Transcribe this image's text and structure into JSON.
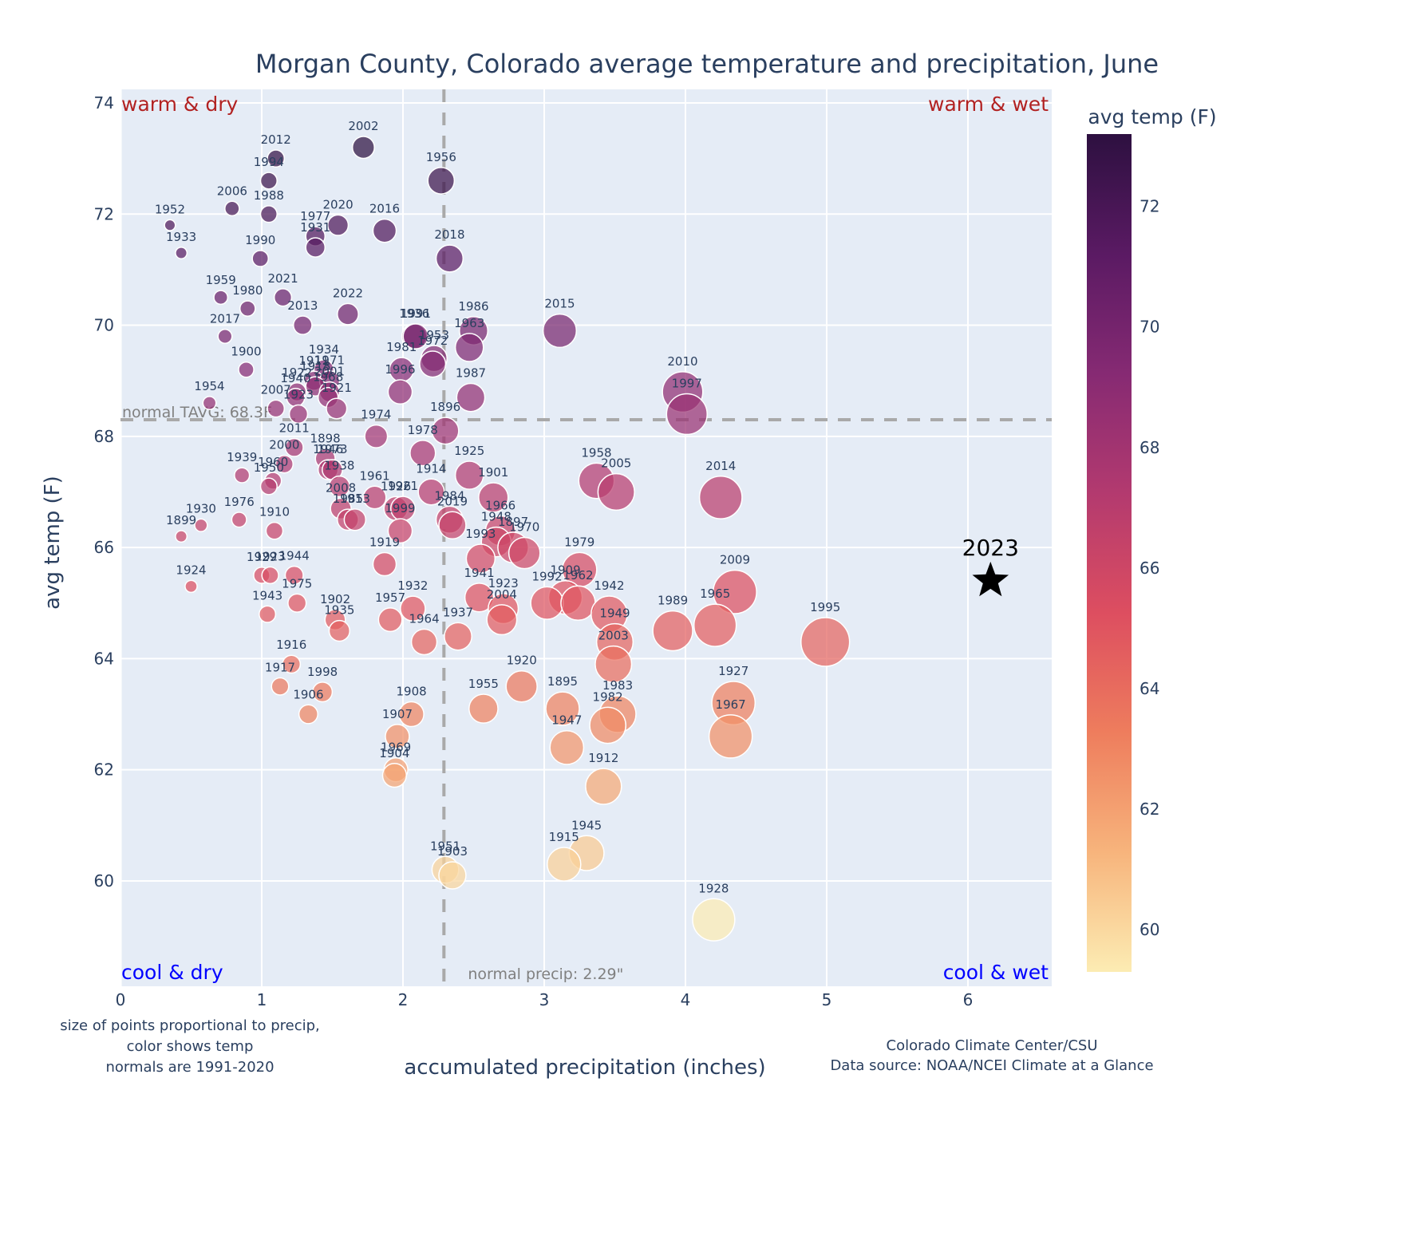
{
  "chart_data": {
    "type": "scatter",
    "title": "Morgan County, Colorado average temperature and precipitation, June",
    "xlabel": "accumulated precipitation (inches)",
    "ylabel": "avg temp (F)",
    "xlim": [
      0,
      6.6
    ],
    "ylim": [
      58.2,
      74.3
    ],
    "x_ticks": [
      0,
      1,
      2,
      3,
      4,
      5,
      6
    ],
    "y_ticks": [
      60,
      62,
      64,
      66,
      68,
      70,
      72,
      74
    ],
    "grid": true,
    "normal_temp": 68.3,
    "normal_temp_label": "normal TAVG: 68.3F",
    "normal_precip": 2.29,
    "normal_precip_label": "normal precip: 2.29\"",
    "quadrant_labels": {
      "top_left": "warm & dry",
      "top_right": "warm & wet",
      "bottom_left": "cool & dry",
      "bottom_right": "cool & wet"
    },
    "quadrant_colors": {
      "warm": "#b22222",
      "cool": "#0000ff"
    },
    "colorbar": {
      "title": "avg temp (F)",
      "range": [
        59.3,
        73.2
      ],
      "ticks": [
        60,
        62,
        64,
        66,
        68,
        70,
        72
      ],
      "colorscale": [
        "#fcecb3",
        "#f7b47c",
        "#ee7d5d",
        "#dd4e60",
        "#b33a6f",
        "#862a73",
        "#5a1a63",
        "#2d1040"
      ]
    },
    "highlight": {
      "label": "2023",
      "x": 6.16,
      "y": 65.4,
      "marker": "star"
    },
    "size_note": "size of points proportional to precip,",
    "color_note": "color shows temp",
    "normals_note": "normals are 1991-2020",
    "credit_line1": "Colorado Climate Center/CSU",
    "credit_line2": "Data source: NOAA/NCEI Climate at a Glance",
    "points": [
      {
        "year": "2002",
        "x": 1.72,
        "y": 73.2
      },
      {
        "year": "2012",
        "x": 1.1,
        "y": 73.0
      },
      {
        "year": "1994",
        "x": 1.05,
        "y": 72.6
      },
      {
        "year": "1956",
        "x": 2.27,
        "y": 72.6
      },
      {
        "year": "2006",
        "x": 0.79,
        "y": 72.1
      },
      {
        "year": "1988",
        "x": 1.05,
        "y": 72.0
      },
      {
        "year": "1952",
        "x": 0.35,
        "y": 71.8
      },
      {
        "year": "2020",
        "x": 1.54,
        "y": 71.8
      },
      {
        "year": "2016",
        "x": 1.87,
        "y": 71.7
      },
      {
        "year": "1977",
        "x": 1.38,
        "y": 71.6
      },
      {
        "year": "1931",
        "x": 1.38,
        "y": 71.4
      },
      {
        "year": "1933",
        "x": 0.43,
        "y": 71.3
      },
      {
        "year": "1990",
        "x": 0.99,
        "y": 71.2
      },
      {
        "year": "2018",
        "x": 2.33,
        "y": 71.2
      },
      {
        "year": "1959",
        "x": 0.71,
        "y": 70.5
      },
      {
        "year": "2021",
        "x": 1.15,
        "y": 70.5
      },
      {
        "year": "1980",
        "x": 0.9,
        "y": 70.3
      },
      {
        "year": "2022",
        "x": 1.61,
        "y": 70.2
      },
      {
        "year": "2013",
        "x": 1.29,
        "y": 70.0
      },
      {
        "year": "1986",
        "x": 2.5,
        "y": 69.9
      },
      {
        "year": "2015",
        "x": 3.11,
        "y": 69.9
      },
      {
        "year": "1936",
        "x": 2.08,
        "y": 69.8
      },
      {
        "year": "1991",
        "x": 2.09,
        "y": 69.8
      },
      {
        "year": "2017",
        "x": 0.74,
        "y": 69.8
      },
      {
        "year": "1963",
        "x": 2.47,
        "y": 69.6
      },
      {
        "year": "1953",
        "x": 2.22,
        "y": 69.4
      },
      {
        "year": "1972",
        "x": 2.21,
        "y": 69.3
      },
      {
        "year": "1900",
        "x": 0.89,
        "y": 69.2
      },
      {
        "year": "1981",
        "x": 1.99,
        "y": 69.2
      },
      {
        "year": "1934",
        "x": 1.44,
        "y": 69.2
      },
      {
        "year": "1911",
        "x": 1.37,
        "y": 69.0
      },
      {
        "year": "1971",
        "x": 1.48,
        "y": 69.0
      },
      {
        "year": "1918",
        "x": 1.38,
        "y": 68.9
      },
      {
        "year": "1922",
        "x": 1.25,
        "y": 68.8
      },
      {
        "year": "2001",
        "x": 1.48,
        "y": 68.8
      },
      {
        "year": "1996",
        "x": 1.98,
        "y": 68.8
      },
      {
        "year": "2010",
        "x": 3.98,
        "y": 68.8
      },
      {
        "year": "1987",
        "x": 2.48,
        "y": 68.7
      },
      {
        "year": "1940",
        "x": 1.24,
        "y": 68.7
      },
      {
        "year": "1968",
        "x": 1.47,
        "y": 68.7
      },
      {
        "year": "1954",
        "x": 0.63,
        "y": 68.6
      },
      {
        "year": "2007",
        "x": 1.1,
        "y": 68.5
      },
      {
        "year": "1921",
        "x": 1.53,
        "y": 68.5
      },
      {
        "year": "1997",
        "x": 4.01,
        "y": 68.4
      },
      {
        "year": "1923b",
        "x": 1.26,
        "y": 68.4
      },
      {
        "year": "1896",
        "x": 2.3,
        "y": 68.1
      },
      {
        "year": "1974",
        "x": 1.81,
        "y": 68.0
      },
      {
        "year": "2011",
        "x": 1.23,
        "y": 67.8
      },
      {
        "year": "1978",
        "x": 2.14,
        "y": 67.7
      },
      {
        "year": "1898",
        "x": 1.45,
        "y": 67.6
      },
      {
        "year": "2000",
        "x": 1.16,
        "y": 67.5
      },
      {
        "year": "1946",
        "x": 1.47,
        "y": 67.4
      },
      {
        "year": "1973",
        "x": 1.5,
        "y": 67.4
      },
      {
        "year": "1939",
        "x": 0.86,
        "y": 67.3
      },
      {
        "year": "1925",
        "x": 2.47,
        "y": 67.3
      },
      {
        "year": "1958",
        "x": 3.37,
        "y": 67.2
      },
      {
        "year": "1960",
        "x": 1.08,
        "y": 67.2
      },
      {
        "year": "1938",
        "x": 1.55,
        "y": 67.1
      },
      {
        "year": "1950",
        "x": 1.05,
        "y": 67.1
      },
      {
        "year": "1914",
        "x": 2.2,
        "y": 67.0
      },
      {
        "year": "2005",
        "x": 3.51,
        "y": 67.0
      },
      {
        "year": "1901",
        "x": 2.64,
        "y": 66.9
      },
      {
        "year": "1961",
        "x": 1.8,
        "y": 66.9
      },
      {
        "year": "2014",
        "x": 4.25,
        "y": 66.9
      },
      {
        "year": "1926",
        "x": 1.95,
        "y": 66.7
      },
      {
        "year": "1921b",
        "x": 2.0,
        "y": 66.7
      },
      {
        "year": "2008",
        "x": 1.56,
        "y": 66.7
      },
      {
        "year": "1984",
        "x": 2.33,
        "y": 66.5
      },
      {
        "year": "1985",
        "x": 1.61,
        "y": 66.5
      },
      {
        "year": "1913",
        "x": 1.66,
        "y": 66.5
      },
      {
        "year": "1930",
        "x": 0.57,
        "y": 66.4
      },
      {
        "year": "2019",
        "x": 2.35,
        "y": 66.4
      },
      {
        "year": "1966",
        "x": 2.69,
        "y": 66.3
      },
      {
        "year": "1999",
        "x": 1.98,
        "y": 66.3
      },
      {
        "year": "1910",
        "x": 1.09,
        "y": 66.3
      },
      {
        "year": "1976",
        "x": 0.84,
        "y": 66.5
      },
      {
        "year": "1899",
        "x": 0.43,
        "y": 66.2
      },
      {
        "year": "1948",
        "x": 2.66,
        "y": 66.1
      },
      {
        "year": "1897",
        "x": 2.78,
        "y": 66.0
      },
      {
        "year": "1970",
        "x": 2.86,
        "y": 65.9
      },
      {
        "year": "1993",
        "x": 2.55,
        "y": 65.8
      },
      {
        "year": "1919",
        "x": 1.87,
        "y": 65.7
      },
      {
        "year": "1979",
        "x": 3.25,
        "y": 65.6
      },
      {
        "year": "1929",
        "x": 1.0,
        "y": 65.5
      },
      {
        "year": "1923c",
        "x": 1.06,
        "y": 65.5
      },
      {
        "year": "1944",
        "x": 1.23,
        "y": 65.5
      },
      {
        "year": "1924",
        "x": 0.5,
        "y": 65.3
      },
      {
        "year": "2009",
        "x": 4.35,
        "y": 65.2
      },
      {
        "year": "1941",
        "x": 2.54,
        "y": 65.1
      },
      {
        "year": "1909",
        "x": 3.15,
        "y": 65.1
      },
      {
        "year": "1992",
        "x": 3.02,
        "y": 65.0
      },
      {
        "year": "1962",
        "x": 3.24,
        "y": 65.0
      },
      {
        "year": "1975",
        "x": 1.25,
        "y": 65.0
      },
      {
        "year": "1923",
        "x": 2.71,
        "y": 64.9
      },
      {
        "year": "1932",
        "x": 2.07,
        "y": 64.9
      },
      {
        "year": "1942",
        "x": 3.46,
        "y": 64.8
      },
      {
        "year": "1943",
        "x": 1.04,
        "y": 64.8
      },
      {
        "year": "2004",
        "x": 2.7,
        "y": 64.7
      },
      {
        "year": "1957",
        "x": 1.91,
        "y": 64.7
      },
      {
        "year": "1902",
        "x": 1.52,
        "y": 64.7
      },
      {
        "year": "1965",
        "x": 4.21,
        "y": 64.6
      },
      {
        "year": "1989",
        "x": 3.91,
        "y": 64.5
      },
      {
        "year": "1935",
        "x": 1.55,
        "y": 64.5
      },
      {
        "year": "1937",
        "x": 2.39,
        "y": 64.4
      },
      {
        "year": "1949",
        "x": 3.5,
        "y": 64.3
      },
      {
        "year": "1964",
        "x": 2.15,
        "y": 64.3
      },
      {
        "year": "1995",
        "x": 4.99,
        "y": 64.3
      },
      {
        "year": "2003",
        "x": 3.49,
        "y": 63.9
      },
      {
        "year": "1916",
        "x": 1.21,
        "y": 63.9
      },
      {
        "year": "1917",
        "x": 1.13,
        "y": 63.5
      },
      {
        "year": "1920",
        "x": 2.84,
        "y": 63.5
      },
      {
        "year": "1998",
        "x": 1.43,
        "y": 63.4
      },
      {
        "year": "1927",
        "x": 4.34,
        "y": 63.2
      },
      {
        "year": "1895",
        "x": 3.13,
        "y": 63.1
      },
      {
        "year": "1955",
        "x": 2.57,
        "y": 63.1
      },
      {
        "year": "1906",
        "x": 1.33,
        "y": 63.0
      },
      {
        "year": "1908",
        "x": 2.06,
        "y": 63.0
      },
      {
        "year": "1983",
        "x": 3.52,
        "y": 63.0
      },
      {
        "year": "1982",
        "x": 3.45,
        "y": 62.8
      },
      {
        "year": "1967",
        "x": 4.32,
        "y": 62.6
      },
      {
        "year": "1907",
        "x": 1.96,
        "y": 62.6
      },
      {
        "year": "1947",
        "x": 3.16,
        "y": 62.4
      },
      {
        "year": "1969",
        "x": 1.95,
        "y": 62.0
      },
      {
        "year": "1904",
        "x": 1.94,
        "y": 61.9
      },
      {
        "year": "1912",
        "x": 3.42,
        "y": 61.7
      },
      {
        "year": "1945",
        "x": 3.3,
        "y": 60.5
      },
      {
        "year": "1915",
        "x": 3.14,
        "y": 60.3
      },
      {
        "year": "1951",
        "x": 2.3,
        "y": 60.2
      },
      {
        "year": "1903",
        "x": 2.35,
        "y": 60.1
      },
      {
        "year": "1928",
        "x": 4.2,
        "y": 59.3
      }
    ]
  }
}
